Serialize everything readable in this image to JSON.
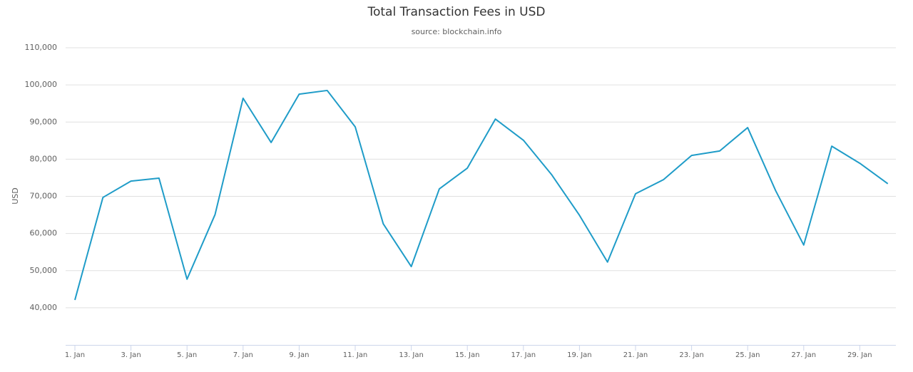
{
  "chart_data": {
    "type": "line",
    "title": "Total Transaction Fees in USD",
    "subtitle": "source: blockchain.info",
    "y_label": "USD",
    "categories": [
      "1. Jan",
      null,
      "3. Jan",
      null,
      "5. Jan",
      null,
      "7. Jan",
      null,
      "9. Jan",
      null,
      "11. Jan",
      null,
      "13. Jan",
      null,
      "15. Jan",
      null,
      "17. Jan",
      null,
      "19. Jan",
      null,
      "21. Jan",
      null,
      "23. Jan",
      null,
      "25. Jan",
      null,
      "27. Jan",
      null,
      "29. Jan",
      null
    ],
    "series": [
      {
        "name": "USD",
        "color": "#1f9cc8",
        "values": [
          42100,
          69700,
          74100,
          74900,
          47700,
          65100,
          96400,
          84500,
          97500,
          98500,
          88700,
          62600,
          51100,
          72000,
          77600,
          90800,
          85100,
          75900,
          64900,
          52300,
          70700,
          74500,
          81000,
          82200,
          88500,
          71500,
          56900,
          83500,
          78900,
          73400
        ]
      }
    ],
    "ylim": [
      30000,
      110000
    ],
    "yticks": [
      {
        "value": 40000,
        "label": "40,000"
      },
      {
        "value": 50000,
        "label": "50,000"
      },
      {
        "value": 60000,
        "label": "60,000"
      },
      {
        "value": 70000,
        "label": "70,000"
      },
      {
        "value": 80000,
        "label": "80,000"
      },
      {
        "value": 90000,
        "label": "90,000"
      },
      {
        "value": 100000,
        "label": "100,000"
      },
      {
        "value": 110000,
        "label": "110,000"
      }
    ],
    "grid": true
  }
}
